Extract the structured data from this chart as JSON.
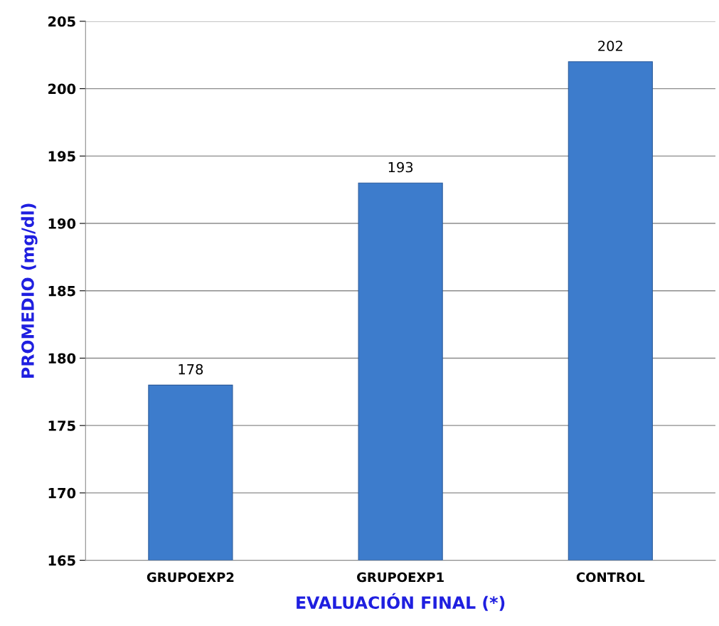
{
  "chart_data": {
    "type": "bar",
    "xlabel": "EVALUACIÓN FINAL (*)",
    "ylabel": "PROMEDIO (mg/dl)",
    "categories": [
      "GRUPOEXP2",
      "GRUPOEXP1",
      "CONTROL"
    ],
    "values": [
      178,
      193,
      202
    ],
    "color": "#3d7ccc",
    "ylim": [
      165,
      205
    ],
    "yticks": [
      165,
      170,
      175,
      180,
      185,
      190,
      195,
      200,
      205
    ],
    "grid": "y",
    "data_labels": true
  }
}
